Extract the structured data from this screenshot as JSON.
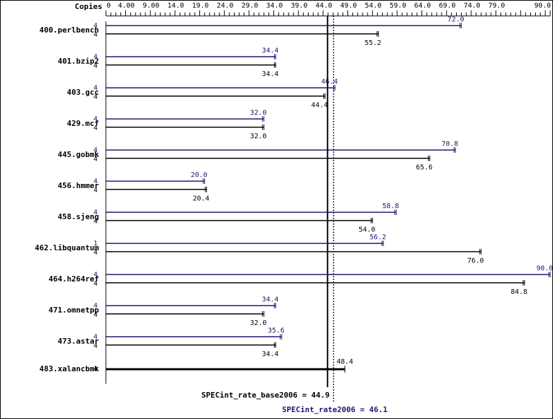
{
  "chart_data": {
    "type": "bar",
    "header_label": "Copies",
    "colors": {
      "peak": "#191970",
      "base": "#000000",
      "frame": "#000000",
      "background": "#ffffff"
    },
    "x_ticks": [
      "0",
      "4.00",
      "9.00",
      "14.0",
      "19.0",
      "24.0",
      "29.0",
      "34.0",
      "39.0",
      "44.0",
      "49.0",
      "54.0",
      "59.0",
      "64.0",
      "69.0",
      "74.0",
      "79.0",
      "90.0"
    ],
    "x_tick_values": [
      0,
      4,
      9,
      14,
      19,
      24,
      29,
      34,
      39,
      44,
      49,
      54,
      59,
      64,
      69,
      74,
      79,
      90
    ],
    "xlim": [
      0,
      90
    ],
    "series": [
      {
        "name": "SPECint_rate2006",
        "key": "peak"
      },
      {
        "name": "SPECint_rate_base2006",
        "key": "base"
      }
    ],
    "benchmarks": [
      {
        "name": "400.perlbench",
        "peak_copies": "4",
        "peak": 72.0,
        "peak_label": "72.0",
        "base_copies": "4",
        "base": 55.2,
        "base_label": "55.2"
      },
      {
        "name": "401.bzip2",
        "peak_copies": "4",
        "peak": 34.4,
        "peak_label": "34.4",
        "base_copies": "4",
        "base": 34.4,
        "base_label": "34.4"
      },
      {
        "name": "403.gcc",
        "peak_copies": "4",
        "peak": 46.4,
        "peak_label": "46.4",
        "base_copies": "4",
        "base": 44.4,
        "base_label": "44.4"
      },
      {
        "name": "429.mcf",
        "peak_copies": "4",
        "peak": 32.0,
        "peak_label": "32.0",
        "base_copies": "4",
        "base": 32.0,
        "base_label": "32.0"
      },
      {
        "name": "445.gobmk",
        "peak_copies": "4",
        "peak": 70.8,
        "peak_label": "70.8",
        "base_copies": "4",
        "base": 65.6,
        "base_label": "65.6"
      },
      {
        "name": "456.hmmer",
        "peak_copies": "4",
        "peak": 20.0,
        "peak_label": "20.0",
        "base_copies": "4",
        "base": 20.4,
        "base_label": "20.4"
      },
      {
        "name": "458.sjeng",
        "peak_copies": "4",
        "peak": 58.8,
        "peak_label": "58.8",
        "base_copies": "4",
        "base": 54.0,
        "base_label": "54.0"
      },
      {
        "name": "462.libquantum",
        "peak_copies": "1",
        "peak": 56.2,
        "peak_label": "56.2",
        "base_copies": "4",
        "base": 76.0,
        "base_label": "76.0"
      },
      {
        "name": "464.h264ref",
        "peak_copies": "4",
        "peak": 90.0,
        "peak_label": "90.0",
        "base_copies": "4",
        "base": 84.8,
        "base_label": "84.8"
      },
      {
        "name": "471.omnetpp",
        "peak_copies": "4",
        "peak": 34.4,
        "peak_label": "34.4",
        "base_copies": "4",
        "base": 32.0,
        "base_label": "32.0"
      },
      {
        "name": "473.astar",
        "peak_copies": "4",
        "peak": 35.6,
        "peak_label": "35.6",
        "base_copies": "4",
        "base": 34.4,
        "base_label": "34.4"
      },
      {
        "name": "483.xalancbmk",
        "combined": true,
        "base_copies": "4",
        "base": 48.4,
        "base_label": "48.4"
      }
    ],
    "base_score": 44.9,
    "base_score_label": "SPECint_rate_base2006 = 44.9",
    "peak_score": 46.1,
    "peak_score_label": "SPECint_rate2006 = 46.1"
  }
}
